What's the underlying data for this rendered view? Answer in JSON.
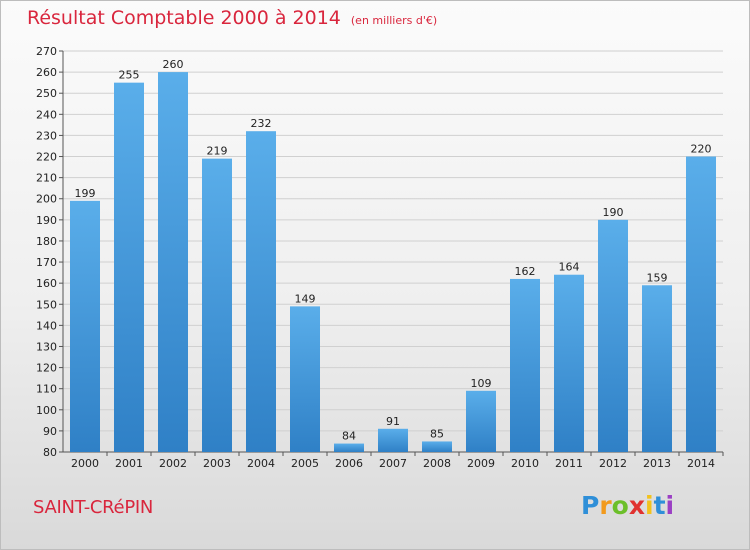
{
  "title": "Résultat Comptable 2000 à 2014",
  "subtitle": "(en milliers d'€)",
  "commune": "SAINT-CRéPIN",
  "logo": {
    "letters": [
      "P",
      "r",
      "o",
      "x",
      "i",
      "t",
      "i"
    ],
    "colors": [
      "#2f8fd8",
      "#f29a1d",
      "#6cbf2a",
      "#e0312f",
      "#f2c21d",
      "#2f8fd8",
      "#9b3fc4"
    ]
  },
  "colors": {
    "bar_top": "#5aaeea",
    "bar_bottom": "#2f80c6",
    "grid": "#d0d0d0",
    "text": "#d9263d"
  },
  "chart_data": {
    "type": "bar",
    "title": "Résultat Comptable 2000 à 2014",
    "subtitle": "(en milliers d'€)",
    "categories": [
      "2000",
      "2001",
      "2002",
      "2003",
      "2004",
      "2005",
      "2006",
      "2007",
      "2008",
      "2009",
      "2010",
      "2011",
      "2012",
      "2013",
      "2014"
    ],
    "values": [
      199,
      255,
      260,
      219,
      232,
      149,
      84,
      91,
      85,
      109,
      162,
      164,
      190,
      159,
      220
    ],
    "ylim": [
      80,
      270
    ],
    "ytick_step": 10,
    "grid": true
  }
}
